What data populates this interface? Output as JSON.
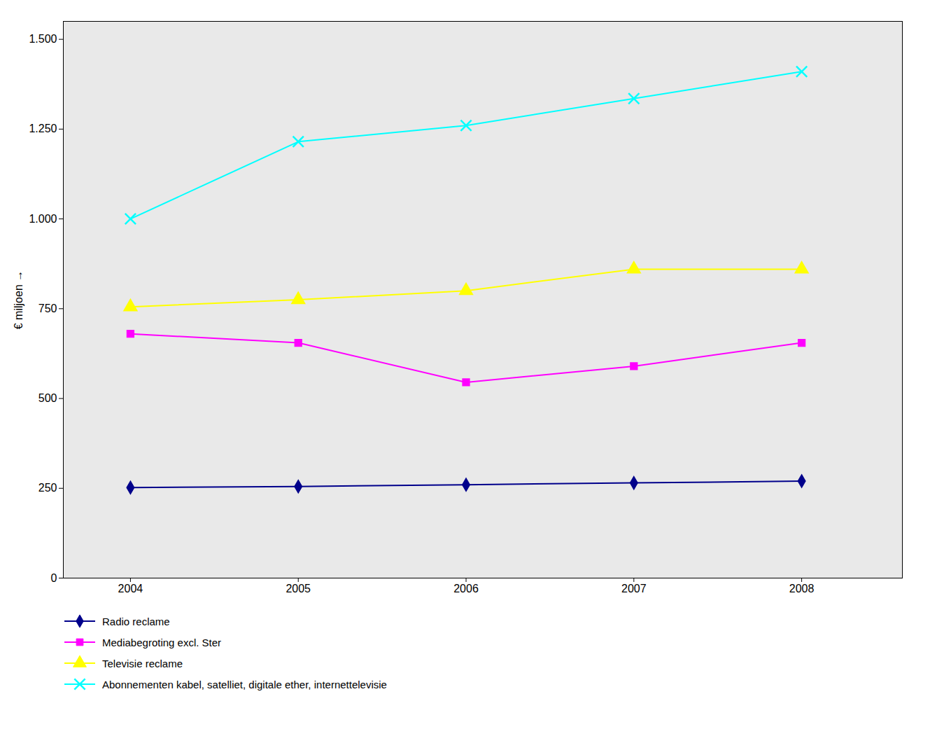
{
  "chart_data": {
    "type": "line",
    "x": [
      2004,
      2005,
      2006,
      2007,
      2008
    ],
    "xlim": [
      2003.6,
      2008.6
    ],
    "xticks": [
      2004,
      2005,
      2006,
      2007,
      2008
    ],
    "ylabel": "€ miljoen",
    "ylim": [
      0,
      1550
    ],
    "yticks": [
      0,
      250,
      500,
      750,
      {
        "value": 1000,
        "label": "1.000"
      },
      {
        "value": 1250,
        "label": "1.250"
      },
      {
        "value": 1500,
        "label": "1.500"
      }
    ],
    "grid": false,
    "legend": "bottom",
    "series": [
      {
        "name": "Radio reclame",
        "color": "#00008B",
        "marker": "diamond",
        "values": [
          252,
          255,
          260,
          265,
          270
        ]
      },
      {
        "name": "Mediabegroting excl. Ster",
        "color": "#FF00FF",
        "marker": "square",
        "values": [
          680,
          655,
          545,
          590,
          655
        ]
      },
      {
        "name": "Televisie reclame",
        "color": "#FFFF00",
        "marker": "triangle",
        "values": [
          755,
          775,
          800,
          860,
          860
        ]
      },
      {
        "name": "Abonnementen kabel, satelliet, digitale ether, internettelevisie",
        "color": "#00FFFF",
        "marker": "x",
        "values": [
          1000,
          1215,
          1260,
          1335,
          1410
        ]
      }
    ]
  }
}
